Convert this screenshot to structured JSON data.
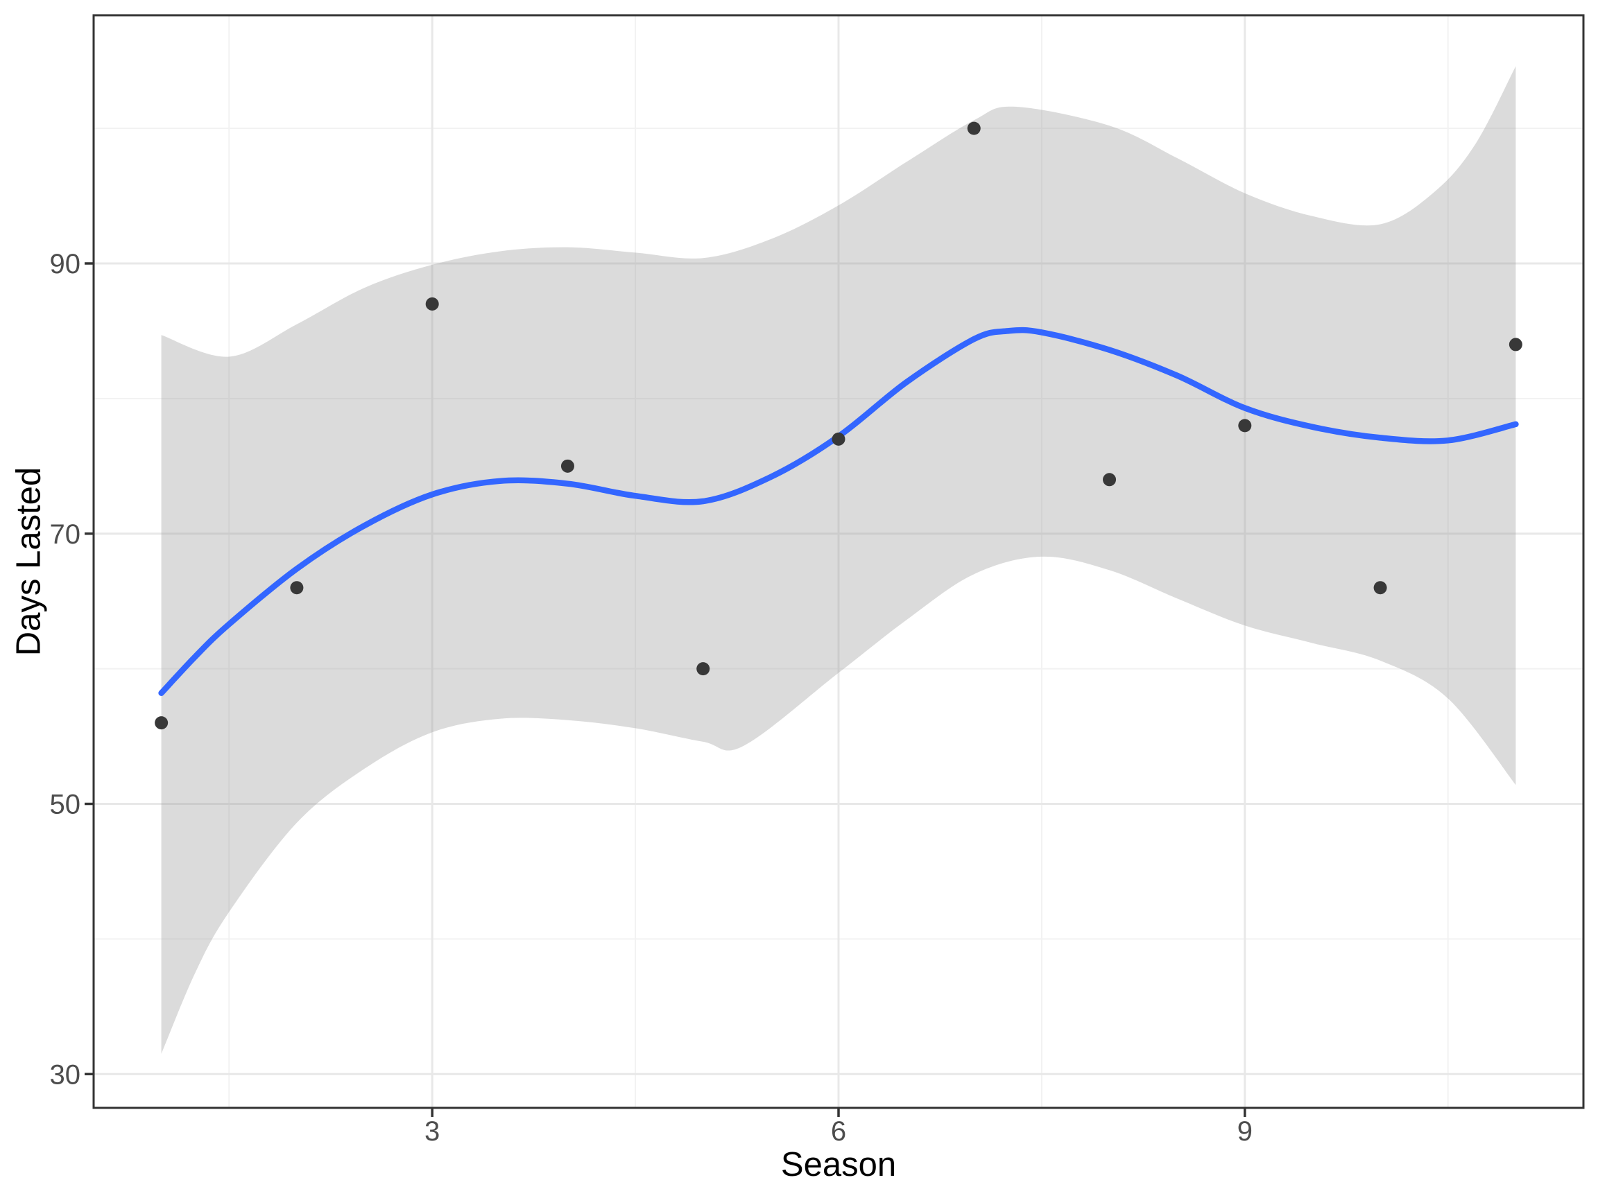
{
  "figure": {
    "background": "#FFFFFF",
    "panel_background": "#FFFFFF",
    "panel_border_color": "#333333"
  },
  "style": {
    "major_grid_color": "#E8E8E8",
    "minor_grid_color": "#F2F2F2",
    "tick_color": "#333333",
    "tick_label_color": "#4D4D4D",
    "axis_title_color": "#000000",
    "smooth_line_color": "#3366FF",
    "point_color": "#383838",
    "ribbon_color": "rgba(153,153,153,0.35)"
  },
  "axes": {
    "x": {
      "title": "Season",
      "ticks": [
        3,
        6,
        9
      ],
      "minor_breaks": [
        1.5,
        4.5,
        7.5,
        10.5
      ],
      "domain": [
        0.5,
        11.5
      ]
    },
    "y": {
      "title": "Days Lasted",
      "ticks": [
        30,
        50,
        70,
        90
      ],
      "minor_breaks": [
        40,
        60,
        80,
        100
      ],
      "domain": [
        27.5,
        108.37
      ]
    }
  },
  "chart_data": {
    "type": "scatter",
    "title": "",
    "xlabel": "Season",
    "ylabel": "Days Lasted",
    "xlim": [
      0.5,
      11.5
    ],
    "ylim": [
      27.5,
      108.37
    ],
    "grid": true,
    "legend": false,
    "points": {
      "x": [
        1,
        2,
        3,
        4,
        5,
        6,
        7,
        8,
        9,
        10,
        11
      ],
      "y": [
        56,
        66,
        87,
        75,
        60,
        77,
        100,
        74,
        78,
        66,
        84
      ]
    },
    "series": [
      {
        "name": "loess_smooth",
        "type": "line",
        "x": [
          1,
          1.25,
          1.5,
          2,
          2.5,
          3,
          3.5,
          4,
          4.5,
          5,
          5.5,
          6,
          6.5,
          7,
          7.25,
          7.5,
          8,
          8.5,
          9,
          9.5,
          10,
          10.5,
          11
        ],
        "y": [
          58.2,
          60.9,
          63.3,
          67.4,
          70.6,
          72.9,
          73.9,
          73.7,
          72.8,
          72.4,
          74.2,
          77.2,
          81.2,
          84.4,
          85.0,
          84.9,
          83.6,
          81.7,
          79.3,
          77.9,
          77.1,
          76.9,
          78.1
        ]
      },
      {
        "name": "confidence_band_upper",
        "type": "ribbon-upper",
        "x": [
          1,
          1.5,
          2,
          2.5,
          3,
          3.5,
          4,
          4.5,
          5,
          5.5,
          6,
          6.5,
          7,
          7.3,
          8,
          8.5,
          9,
          9.5,
          10,
          10.4,
          10.7,
          11
        ],
        "y": [
          84.7,
          83.1,
          85.5,
          88.2,
          89.9,
          90.9,
          91.2,
          90.8,
          90.4,
          91.8,
          94.3,
          97.5,
          100.6,
          101.6,
          100.2,
          97.8,
          95.2,
          93.5,
          92.9,
          95.3,
          98.8,
          104.6
        ]
      },
      {
        "name": "confidence_band_lower",
        "type": "ribbon-lower",
        "x": [
          1,
          1.25,
          1.5,
          2,
          2.5,
          3,
          3.5,
          4,
          4.5,
          5,
          5.3,
          6,
          6.5,
          7,
          7.5,
          8,
          8.5,
          9,
          9.5,
          10,
          10.5,
          11
        ],
        "y": [
          31.5,
          37.5,
          42.0,
          48.6,
          52.6,
          55.3,
          56.3,
          56.2,
          55.6,
          54.6,
          54.3,
          59.7,
          63.6,
          67.0,
          68.3,
          67.3,
          65.2,
          63.2,
          61.9,
          60.6,
          57.8,
          51.4
        ]
      }
    ]
  }
}
